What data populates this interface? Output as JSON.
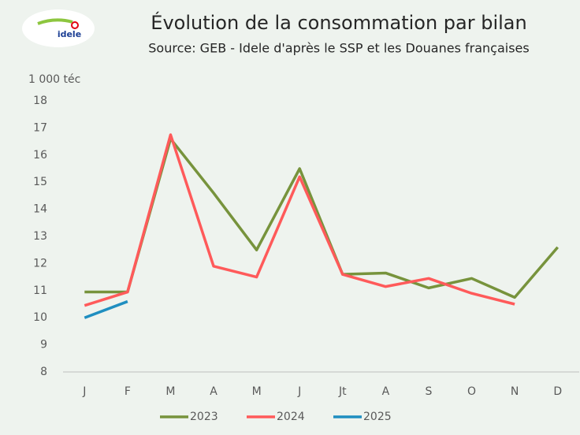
{
  "logo": {
    "text": "idele"
  },
  "chart_data": {
    "type": "line",
    "title": "Évolution de la consommation par bilan",
    "subtitle": "Source: GEB - Idele d'après le SSP et les Douanes françaises",
    "y_label": "1 000 téc",
    "categories": [
      "J",
      "F",
      "M",
      "A",
      "M",
      "J",
      "Jt",
      "A",
      "S",
      "O",
      "N",
      "D"
    ],
    "series": [
      {
        "name": "2023",
        "color": "#77933c",
        "values": [
          10.95,
          10.95,
          16.6,
          14.6,
          12.5,
          15.5,
          11.6,
          11.65,
          11.1,
          11.45,
          10.75,
          12.6
        ]
      },
      {
        "name": "2024",
        "color": "#ff5a5a",
        "values": [
          10.45,
          10.95,
          16.75,
          11.9,
          11.5,
          15.2,
          11.6,
          11.15,
          11.45,
          10.9,
          10.5,
          null
        ]
      },
      {
        "name": "2025",
        "color": "#1f8ec0",
        "values": [
          10.0,
          10.6,
          null,
          null,
          null,
          null,
          null,
          null,
          null,
          null,
          null,
          null
        ]
      }
    ],
    "ylim": [
      8,
      18
    ],
    "yticks": [
      8,
      9,
      10,
      11,
      12,
      13,
      14,
      15,
      16,
      17,
      18
    ],
    "grid": false,
    "legend": "bottom"
  }
}
